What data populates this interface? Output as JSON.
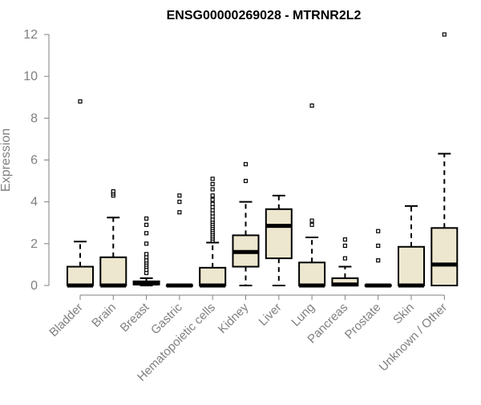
{
  "chart_data": {
    "type": "boxplot",
    "title": "ENSG00000269028 - MTRNR2L2",
    "ylabel": "Expression",
    "xlabel": "",
    "ylim": [
      0,
      12
    ],
    "yticks": [
      0,
      2,
      4,
      6,
      8,
      10,
      12
    ],
    "grid": false,
    "legend": "none",
    "colors": {
      "box_fill": "#ede7cf",
      "stroke": "#000000",
      "axis": "#808080",
      "tick_label": "#808080"
    },
    "categories": [
      "Bladder",
      "Brain",
      "Breast",
      "Gastric",
      "Hematopoietic cells",
      "Kidney",
      "Liver",
      "Lung",
      "Pancreas",
      "Prostate",
      "Skin",
      "Unknown / Other"
    ],
    "boxes": [
      {
        "category": "Bladder",
        "whisker_low": 0,
        "q1": 0,
        "median": 0,
        "q3": 0.9,
        "whisker_high": 2.1,
        "outliers": [
          8.8
        ]
      },
      {
        "category": "Brain",
        "whisker_low": 0,
        "q1": 0,
        "median": 0,
        "q3": 1.35,
        "whisker_high": 3.25,
        "outliers": [
          4.3,
          4.4,
          4.5
        ]
      },
      {
        "category": "Breast",
        "whisker_low": 0,
        "q1": 0.05,
        "median": 0.1,
        "q3": 0.2,
        "whisker_high": 0.35,
        "outliers": [
          0.6,
          0.75,
          0.9,
          1.0,
          1.1,
          1.2,
          1.35,
          1.5,
          2.0,
          2.5,
          2.9,
          3.2
        ]
      },
      {
        "category": "Gastric",
        "whisker_low": 0,
        "q1": 0,
        "median": 0,
        "q3": 0.02,
        "whisker_high": 0.05,
        "outliers": [
          3.5,
          4.0,
          4.3
        ]
      },
      {
        "category": "Hematopoietic cells",
        "whisker_low": 0,
        "q1": 0,
        "median": 0,
        "q3": 0.85,
        "whisker_high": 2.05,
        "outliers": [
          2.15,
          2.25,
          2.35,
          2.45,
          2.55,
          2.65,
          2.75,
          2.85,
          2.95,
          3.05,
          3.15,
          3.3,
          3.45,
          3.6,
          3.75,
          3.9,
          4.1,
          4.3,
          4.6,
          4.85,
          5.1
        ]
      },
      {
        "category": "Kidney",
        "whisker_low": 0,
        "q1": 0.9,
        "median": 1.6,
        "q3": 2.4,
        "whisker_high": 4.0,
        "outliers": [
          5.0,
          5.8
        ]
      },
      {
        "category": "Liver",
        "whisker_low": 0,
        "q1": 1.3,
        "median": 2.85,
        "q3": 3.65,
        "whisker_high": 4.3,
        "outliers": []
      },
      {
        "category": "Lung",
        "whisker_low": 0,
        "q1": 0,
        "median": 0,
        "q3": 1.1,
        "whisker_high": 2.3,
        "outliers": [
          2.9,
          3.1,
          8.6
        ]
      },
      {
        "category": "Pancreas",
        "whisker_low": 0,
        "q1": 0,
        "median": 0.05,
        "q3": 0.35,
        "whisker_high": 0.9,
        "outliers": [
          1.3,
          1.9,
          2.2
        ]
      },
      {
        "category": "Prostate",
        "whisker_low": 0,
        "q1": 0,
        "median": 0,
        "q3": 0.02,
        "whisker_high": 0.05,
        "outliers": [
          1.2,
          1.9,
          2.6
        ]
      },
      {
        "category": "Skin",
        "whisker_low": 0,
        "q1": 0,
        "median": 0,
        "q3": 1.85,
        "whisker_high": 3.8,
        "outliers": []
      },
      {
        "category": "Unknown / Other",
        "whisker_low": 0,
        "q1": 0,
        "median": 1.0,
        "q3": 2.75,
        "whisker_high": 6.3,
        "outliers": [
          12.0
        ]
      }
    ]
  }
}
